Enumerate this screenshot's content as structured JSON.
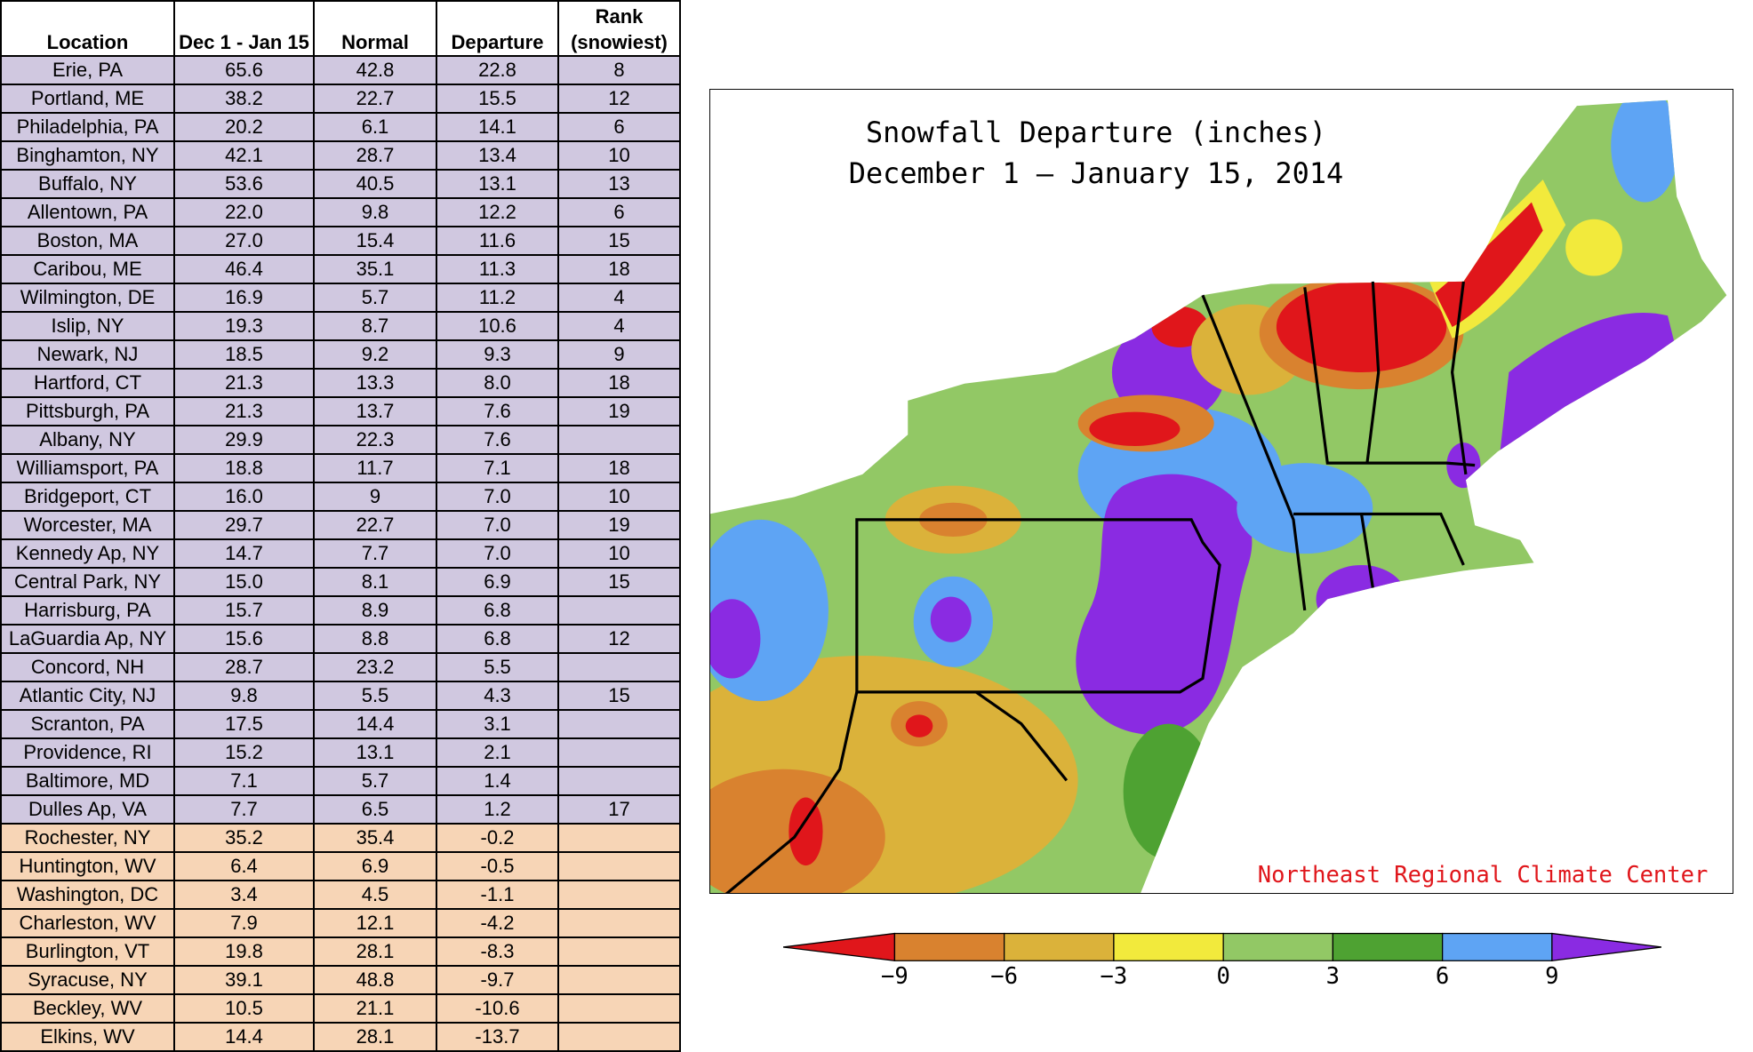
{
  "table": {
    "headers": [
      "Location",
      "Dec 1 - Jan 15",
      "Normal",
      "Departure",
      "Rank (snowiest)"
    ],
    "sections": [
      {
        "fill": "#d0c8e0",
        "rows": [
          [
            "Erie, PA",
            "65.6",
            "42.8",
            "22.8",
            "8"
          ],
          [
            "Portland, ME",
            "38.2",
            "22.7",
            "15.5",
            "12"
          ],
          [
            "Philadelphia, PA",
            "20.2",
            "6.1",
            "14.1",
            "6"
          ],
          [
            "Binghamton, NY",
            "42.1",
            "28.7",
            "13.4",
            "10"
          ],
          [
            "Buffalo, NY",
            "53.6",
            "40.5",
            "13.1",
            "13"
          ],
          [
            "Allentown, PA",
            "22.0",
            "9.8",
            "12.2",
            "6"
          ],
          [
            "Boston, MA",
            "27.0",
            "15.4",
            "11.6",
            "15"
          ],
          [
            "Caribou, ME",
            "46.4",
            "35.1",
            "11.3",
            "18"
          ],
          [
            "Wilmington, DE",
            "16.9",
            "5.7",
            "11.2",
            "4"
          ],
          [
            "Islip, NY",
            "19.3",
            "8.7",
            "10.6",
            "4"
          ],
          [
            "Newark, NJ",
            "18.5",
            "9.2",
            "9.3",
            "9"
          ],
          [
            "Hartford, CT",
            "21.3",
            "13.3",
            "8.0",
            "18"
          ],
          [
            "Pittsburgh, PA",
            "21.3",
            "13.7",
            "7.6",
            "19"
          ],
          [
            "Albany, NY",
            "29.9",
            "22.3",
            "7.6",
            null
          ],
          [
            "Williamsport, PA",
            "18.8",
            "11.7",
            "7.1",
            "18"
          ],
          [
            "Bridgeport, CT",
            "16.0",
            "9",
            "7.0",
            "10"
          ],
          [
            "Worcester, MA",
            "29.7",
            "22.7",
            "7.0",
            "19"
          ],
          [
            "Kennedy Ap, NY",
            "14.7",
            "7.7",
            "7.0",
            "10"
          ],
          [
            "Central Park, NY",
            "15.0",
            "8.1",
            "6.9",
            "15"
          ],
          [
            "Harrisburg, PA",
            "15.7",
            "8.9",
            "6.8",
            null
          ],
          [
            "LaGuardia Ap, NY",
            "15.6",
            "8.8",
            "6.8",
            "12"
          ],
          [
            "Concord, NH",
            "28.7",
            "23.2",
            "5.5",
            null
          ],
          [
            "Atlantic City, NJ",
            "9.8",
            "5.5",
            "4.3",
            "15"
          ],
          [
            "Scranton, PA",
            "17.5",
            "14.4",
            "3.1",
            null
          ],
          [
            "Providence, RI",
            "15.2",
            "13.1",
            "2.1",
            null
          ],
          [
            "Baltimore, MD",
            "7.1",
            "5.7",
            "1.4",
            null
          ],
          [
            "Dulles Ap, VA",
            "7.7",
            "6.5",
            "1.2",
            "17"
          ]
        ]
      },
      {
        "fill": "#f7d5b6",
        "rows": [
          [
            "Rochester, NY",
            "35.2",
            "35.4",
            "-0.2",
            null
          ],
          [
            "Huntington, WV",
            "6.4",
            "6.9",
            "-0.5",
            null
          ],
          [
            "Washington, DC",
            "3.4",
            "4.5",
            "-1.1",
            null
          ],
          [
            "Charleston, WV",
            "7.9",
            "12.1",
            "-4.2",
            null
          ],
          [
            "Burlington, VT",
            "19.8",
            "28.1",
            "-8.3",
            null
          ],
          [
            "Syracuse, NY",
            "39.1",
            "48.8",
            "-9.7",
            null
          ],
          [
            "Beckley, WV",
            "10.5",
            "21.1",
            "-10.6",
            null
          ],
          [
            "Elkins, WV",
            "14.4",
            "28.1",
            "-13.7",
            null
          ]
        ]
      }
    ]
  },
  "map": {
    "title": "Snowfall Departure (inches)",
    "subtitle": "December 1 — January 15, 2014",
    "credit": "Northeast Regional Climate Center",
    "legend": {
      "colors": [
        "#e0161b",
        "#d9822f",
        "#dbb23a",
        "#f2ea3c",
        "#92c865",
        "#4ea232",
        "#5ea4f4",
        "#8a2be2"
      ],
      "ticks": [
        "−9",
        "−6",
        "−3",
        "0",
        "3",
        "6",
        "9"
      ]
    }
  }
}
